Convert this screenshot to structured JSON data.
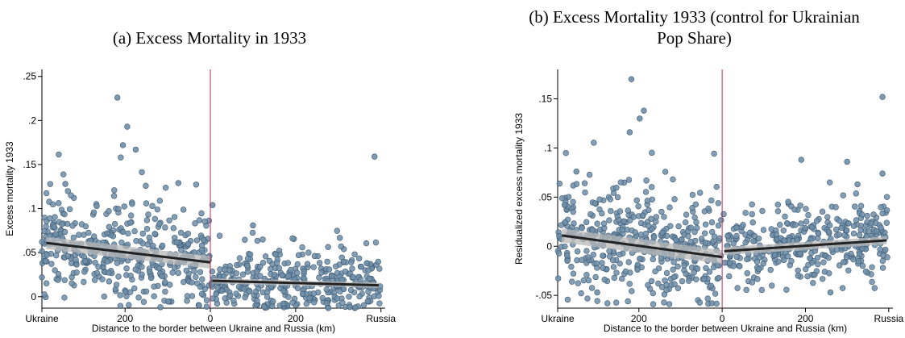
{
  "chart_data": [
    {
      "type": "scatter",
      "title": "(a) Excess Mortality in 1933",
      "xlabel": "Distance to the border between Ukraine and Russia (km)",
      "ylabel": "Excess mortality 1933",
      "xlim": [
        -395,
        410
      ],
      "ylim": [
        -0.013,
        0.258
      ],
      "x_ticks": [
        {
          "value": -395,
          "label": "Ukraine"
        },
        {
          "value": -200,
          "label": "200"
        },
        {
          "value": 0,
          "label": "0"
        },
        {
          "value": 200,
          "label": "200"
        },
        {
          "value": 400,
          "label": "Russia"
        }
      ],
      "y_ticks": [
        {
          "value": 0,
          "label": "0"
        },
        {
          "value": 0.05,
          "label": ".05"
        },
        {
          "value": 0.1,
          "label": ".1"
        },
        {
          "value": 0.15,
          "label": ".15"
        },
        {
          "value": 0.2,
          "label": ".2"
        },
        {
          "value": 0.25,
          "label": ".25"
        }
      ],
      "cutoff": 0,
      "fit_lines": [
        {
          "x": [
            -385,
            0
          ],
          "y": [
            0.061,
            0.039
          ],
          "ci": 0.007
        },
        {
          "x": [
            5,
            395
          ],
          "y": [
            0.018,
            0.013
          ],
          "ci": 0.003
        }
      ],
      "highlights": [
        {
          "x": -218,
          "y": 0.226
        },
        {
          "x": -195,
          "y": 0.193
        },
        {
          "x": -205,
          "y": 0.172
        },
        {
          "x": -175,
          "y": 0.167
        },
        {
          "x": 385,
          "y": 0.159
        },
        {
          "x": -340,
          "y": 0.128
        },
        {
          "x": -75,
          "y": 0.129
        },
        {
          "x": 5,
          "y": 0.104
        },
        {
          "x": 100,
          "y": 0.081
        }
      ],
      "cloud": {
        "count_left": 430,
        "count_right": 360,
        "seed": 7,
        "left": {
          "x_range": [
            -395,
            -2
          ],
          "base": 0.038,
          "slope": -6e-05,
          "spread": 0.028,
          "floor": -0.012
        },
        "right": {
          "x_range": [
            3,
            400
          ],
          "base": 0.017,
          "slope": -1e-05,
          "spread": 0.018,
          "floor": -0.013
        }
      },
      "colors": {
        "point": "#6e8ea8",
        "point_edge": "#3d5a73",
        "cutoff": "#b0305a",
        "fit": "#222222",
        "ci": "#b8b8b8"
      }
    },
    {
      "type": "scatter",
      "title": "(b) Excess Mortality 1933 (control for Ukrainian Pop Share)",
      "title_lines": [
        "(b) Excess Mortality 1933 (control for Ukrainian",
        "Pop Share)"
      ],
      "xlabel": "Distance to the border between Ukraine and Russia (km)",
      "ylabel": "Residualized excess mortality 1933",
      "xlim": [
        -395,
        410
      ],
      "ylim": [
        -0.063,
        0.18
      ],
      "x_ticks": [
        {
          "value": -395,
          "label": "Ukraine"
        },
        {
          "value": -200,
          "label": "200"
        },
        {
          "value": 0,
          "label": "0"
        },
        {
          "value": 200,
          "label": "200"
        },
        {
          "value": 400,
          "label": "Russia"
        }
      ],
      "y_ticks": [
        {
          "value": -0.05,
          "label": "-.05"
        },
        {
          "value": 0,
          "label": "0"
        },
        {
          "value": 0.05,
          "label": ".05"
        },
        {
          "value": 0.1,
          "label": ".1"
        },
        {
          "value": 0.15,
          "label": ".15"
        }
      ],
      "cutoff": 0,
      "fit_lines": [
        {
          "x": [
            -385,
            0
          ],
          "y": [
            0.011,
            -0.011
          ],
          "ci": 0.007
        },
        {
          "x": [
            5,
            395
          ],
          "y": [
            -0.005,
            0.006
          ],
          "ci": 0.004
        }
      ],
      "highlights": [
        {
          "x": -218,
          "y": 0.17
        },
        {
          "x": -188,
          "y": 0.138
        },
        {
          "x": -198,
          "y": 0.13
        },
        {
          "x": -222,
          "y": 0.116
        },
        {
          "x": 385,
          "y": 0.152
        },
        {
          "x": 190,
          "y": 0.088
        },
        {
          "x": -350,
          "y": 0.076
        },
        {
          "x": 300,
          "y": 0.086
        },
        {
          "x": 325,
          "y": 0.063
        },
        {
          "x": 385,
          "y": 0.074
        },
        {
          "x": 260,
          "y": -0.047
        },
        {
          "x": -300,
          "y": -0.047
        },
        {
          "x": -25,
          "y": -0.058
        }
      ],
      "cloud": {
        "count_left": 430,
        "count_right": 360,
        "seed": 13,
        "left": {
          "x_range": [
            -395,
            -2
          ],
          "base": -0.011,
          "slope": -5.7e-05,
          "spread": 0.028,
          "floor": -0.06
        },
        "right": {
          "x_range": [
            3,
            400
          ],
          "base": -0.005,
          "slope": 2.8e-05,
          "spread": 0.017,
          "floor": -0.045
        }
      },
      "colors": {
        "point": "#6e8ea8",
        "point_edge": "#3d5a73",
        "cutoff": "#b0305a",
        "fit": "#222222",
        "ci": "#b8b8b8"
      }
    }
  ]
}
